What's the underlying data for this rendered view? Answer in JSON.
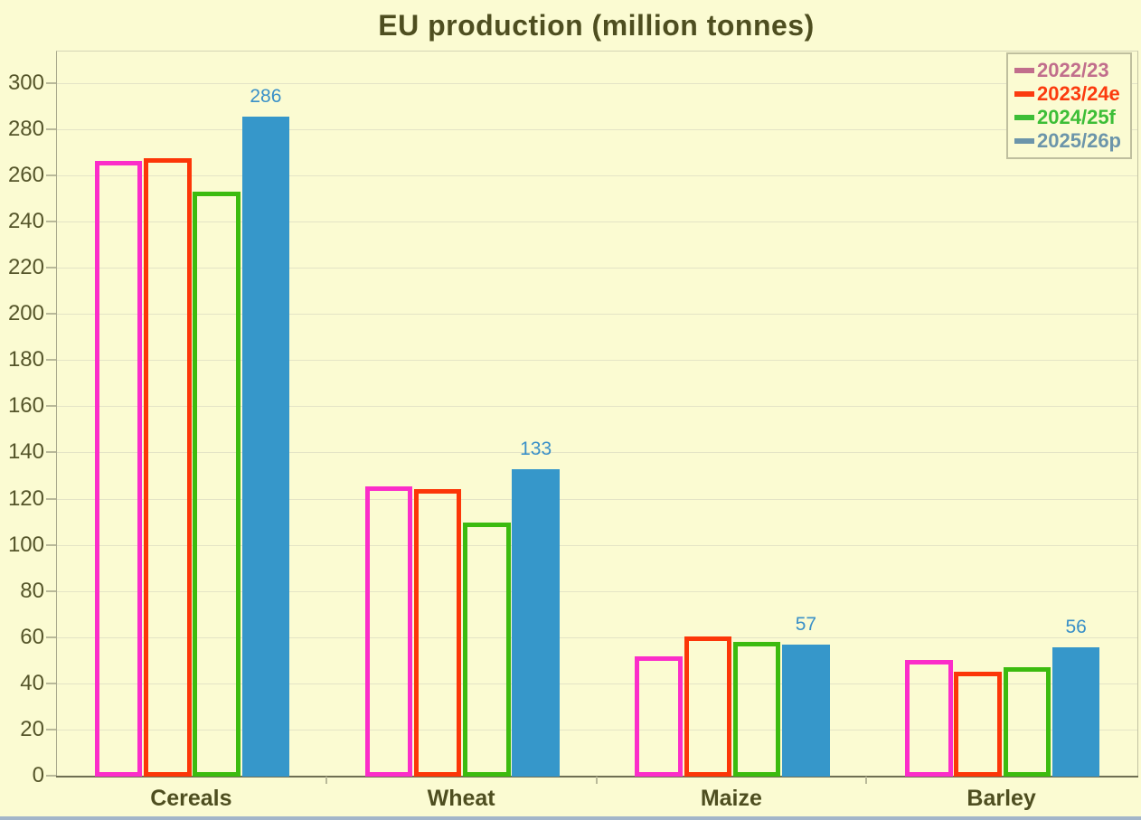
{
  "chart_data": {
    "type": "bar",
    "title": "EU production (million tonnes)",
    "categories": [
      "Cereals",
      "Wheat",
      "Maize",
      "Barley"
    ],
    "series": [
      {
        "name": "2022/23",
        "style": "outline",
        "color": "#FB2DC9",
        "legend_color": "#C16E8C",
        "values": [
          266.5,
          125.5,
          52,
          50.5
        ]
      },
      {
        "name": "2023/24e",
        "style": "outline",
        "color": "#FC3608",
        "legend_color": "#FB3B0F",
        "values": [
          268,
          124.5,
          60.5,
          45.5
        ]
      },
      {
        "name": "2024/25f",
        "style": "outline",
        "color": "#3CBB0F",
        "legend_color": "#3DBE37",
        "values": [
          253.5,
          110,
          58.5,
          47.5
        ]
      },
      {
        "name": "2025/26p",
        "style": "solid",
        "color": "#3697CA",
        "legend_color": "#6C95AA",
        "values": [
          286,
          133,
          57,
          56
        ],
        "data_labels": [
          "286",
          "133",
          "57",
          "56"
        ]
      }
    ],
    "ylim": [
      0,
      314
    ],
    "yticks": [
      0,
      20,
      40,
      60,
      80,
      100,
      120,
      140,
      160,
      180,
      200,
      220,
      240,
      260,
      280,
      300
    ],
    "grid": true,
    "legend_position": "top-right",
    "data_label_color": "#3A90C8"
  },
  "colors": {
    "background": "#FBFBD2",
    "title_text": "#4E4E20",
    "axis_text": "#55552A",
    "gridline": "#E4E4C6",
    "baseline": "#6E6E52",
    "window_edge": "#A2B5C9"
  }
}
